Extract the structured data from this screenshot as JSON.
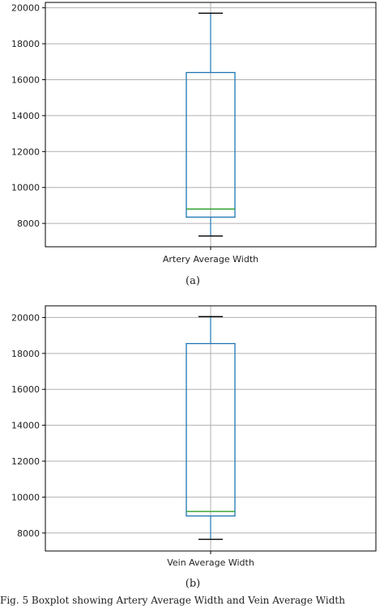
{
  "chart_data": [
    {
      "type": "box",
      "category": "Artery Average Width",
      "ylim": [
        6700,
        20300
      ],
      "yticks": [
        8000,
        10000,
        12000,
        14000,
        16000,
        18000,
        20000
      ],
      "grid": true,
      "stats": {
        "whislo": 7300,
        "q1": 8350,
        "med": 8800,
        "q3": 16400,
        "whishi": 19700
      },
      "caption": "(a)"
    },
    {
      "type": "box",
      "category": "Vein Average Width",
      "ylim": [
        7000,
        20650
      ],
      "yticks": [
        8000,
        10000,
        12000,
        14000,
        16000,
        18000,
        20000
      ],
      "grid": true,
      "stats": {
        "whislo": 7650,
        "q1": 8950,
        "med": 9200,
        "q3": 18550,
        "whishi": 20050
      },
      "caption": "(b)"
    }
  ],
  "colors": {
    "box": "#1f77b4",
    "median": "#2ca02c",
    "whisker": "#000000",
    "grid": "#b0b0b0"
  },
  "figure_caption": "Fig. 5    Boxplot showing Artery Average Width and Vein Average Width"
}
